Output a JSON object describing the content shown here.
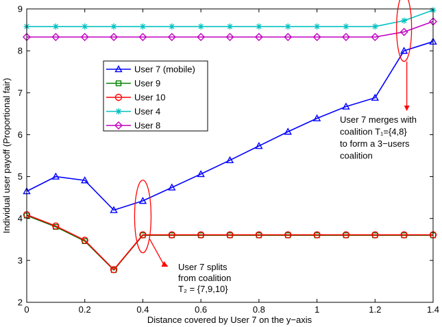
{
  "chart_data": {
    "type": "line",
    "xlabel": "Distance covered by User 7 on the y−axis",
    "ylabel": "Individual user payoff (Proportional fair)",
    "xlim": [
      0,
      1.4
    ],
    "ylim": [
      2,
      9
    ],
    "xticks": [
      "0",
      "0.2",
      "0.4",
      "0.6",
      "0.8",
      "1",
      "1.2",
      "1.4"
    ],
    "yticks": [
      "2",
      "3",
      "4",
      "5",
      "6",
      "7",
      "8",
      "9"
    ],
    "grid": false,
    "legend_position": "upper-left",
    "x": [
      0,
      0.1,
      0.2,
      0.3,
      0.4,
      0.5,
      0.6,
      0.7,
      0.8,
      0.9,
      1.0,
      1.1,
      1.2,
      1.3,
      1.4
    ],
    "series": [
      {
        "name": "User 7 (mobile)",
        "color": "#0000ff",
        "marker": "triangle",
        "values": [
          4.65,
          5.0,
          4.91,
          4.2,
          4.42,
          4.74,
          5.06,
          5.39,
          5.73,
          6.07,
          6.39,
          6.67,
          6.88,
          8.0,
          8.22
        ]
      },
      {
        "name": "User 9",
        "color": "#008000",
        "marker": "square",
        "values": [
          4.07,
          3.8,
          3.46,
          2.77,
          3.6,
          3.6,
          3.6,
          3.6,
          3.6,
          3.6,
          3.6,
          3.6,
          3.6,
          3.6,
          3.6
        ]
      },
      {
        "name": "User 10",
        "color": "#ff0000",
        "marker": "circle",
        "values": [
          4.09,
          3.82,
          3.48,
          2.78,
          3.61,
          3.61,
          3.61,
          3.61,
          3.61,
          3.61,
          3.61,
          3.61,
          3.61,
          3.61,
          3.61
        ]
      },
      {
        "name": "User 4",
        "color": "#00c0c0",
        "marker": "asterisk",
        "values": [
          8.58,
          8.58,
          8.58,
          8.58,
          8.58,
          8.58,
          8.58,
          8.58,
          8.58,
          8.58,
          8.58,
          8.58,
          8.58,
          8.72,
          8.97
        ]
      },
      {
        "name": "User 8",
        "color": "#c000c0",
        "marker": "diamond",
        "values": [
          8.33,
          8.33,
          8.33,
          8.33,
          8.33,
          8.33,
          8.33,
          8.33,
          8.33,
          8.33,
          8.33,
          8.33,
          8.33,
          8.45,
          8.7
        ]
      }
    ],
    "annotations": [
      {
        "text_lines": [
          "User 7 merges with",
          "coalition T₁={4,8}",
          "to form a 3−users",
          "coalition"
        ],
        "ellipse_center": [
          1.3,
          8.5
        ],
        "color": "#ff0000"
      },
      {
        "text_lines": [
          "User 7 splits",
          "from coalition",
          "T₂ = {7,9,10}"
        ],
        "ellipse_center": [
          0.4,
          4.0
        ],
        "color": "#ff0000"
      }
    ]
  }
}
